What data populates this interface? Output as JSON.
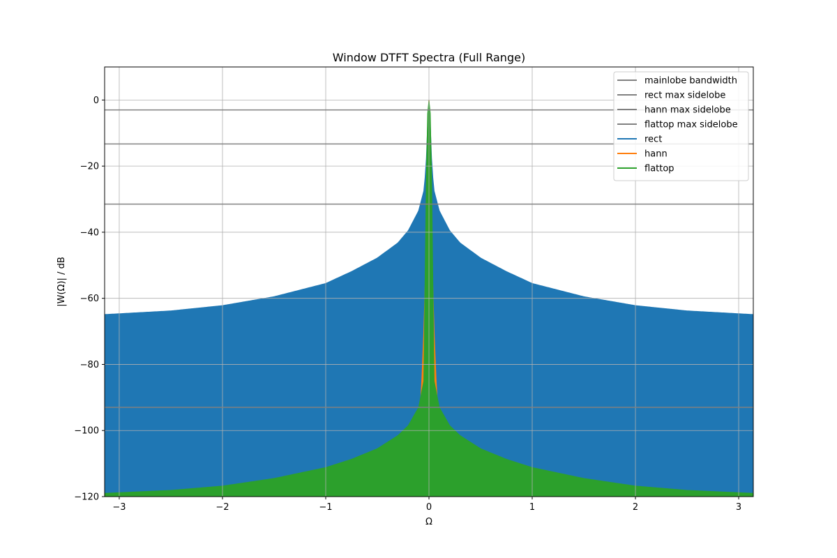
{
  "chart_data": {
    "type": "area",
    "title": "Window DTFT Spectra (Full Range)",
    "xlabel": "Ω",
    "ylabel": "|W(Ω)| / dB",
    "xlim": [
      -3.14159,
      3.14159
    ],
    "ylim": [
      -120,
      10
    ],
    "xticks": [
      -3,
      -2,
      -1,
      0,
      1,
      2,
      3
    ],
    "xtick_labels": [
      "−3",
      "−2",
      "−1",
      "0",
      "1",
      "2",
      "3"
    ],
    "yticks": [
      0,
      -20,
      -40,
      -60,
      -80,
      -100,
      -120
    ],
    "ytick_labels": [
      "0",
      "−20",
      "−40",
      "−60",
      "−80",
      "−100",
      "−120"
    ],
    "grid": true,
    "legend_position": "top-right",
    "hlines": [
      {
        "name": "mainlobe bandwidth",
        "y": -3.01,
        "color": "#808080"
      },
      {
        "name": "rect max sidelobe",
        "y": -13.3,
        "color": "#808080"
      },
      {
        "name": "hann max sidelobe",
        "y": -31.5,
        "color": "#808080"
      },
      {
        "name": "flattop max sidelobe",
        "y": -93.0,
        "color": "#808080"
      }
    ],
    "series": [
      {
        "name": "rect",
        "color": "#1f77b4",
        "style": "filled-envelope",
        "envelope_x": [
          0,
          0.01,
          0.02,
          0.03,
          0.05,
          0.1,
          0.2,
          0.3,
          0.5,
          0.75,
          1.0,
          1.5,
          2.0,
          2.5,
          3.14159
        ],
        "envelope_y": [
          0,
          -5,
          -14,
          -21,
          -27.5,
          -33.5,
          -39.5,
          -43.2,
          -47.8,
          -51.9,
          -55.5,
          -59.5,
          -62.2,
          -63.8,
          -64.9
        ],
        "floor": -120
      },
      {
        "name": "hann",
        "color": "#ff7f0e",
        "style": "filled-envelope",
        "envelope_x": [
          0,
          0.01,
          0.02,
          0.03,
          0.05,
          0.07,
          0.085,
          0.09
        ],
        "envelope_y": [
          0,
          -10,
          -32,
          -48,
          -70,
          -85,
          -93,
          -95
        ],
        "floor": -120
      },
      {
        "name": "flattop",
        "color": "#2ca02c",
        "style": "filled-envelope",
        "envelope_x": [
          0,
          0.01,
          0.02,
          0.03,
          0.05,
          0.1,
          0.2,
          0.3,
          0.5,
          0.75,
          1.0,
          1.5,
          2.0,
          2.5,
          3.14159
        ],
        "envelope_y": [
          0,
          -2,
          -10,
          -35,
          -85,
          -93,
          -98.5,
          -101.5,
          -105.5,
          -108.7,
          -111.2,
          -114.5,
          -116.8,
          -118.1,
          -119.0
        ],
        "floor": -120
      }
    ]
  }
}
